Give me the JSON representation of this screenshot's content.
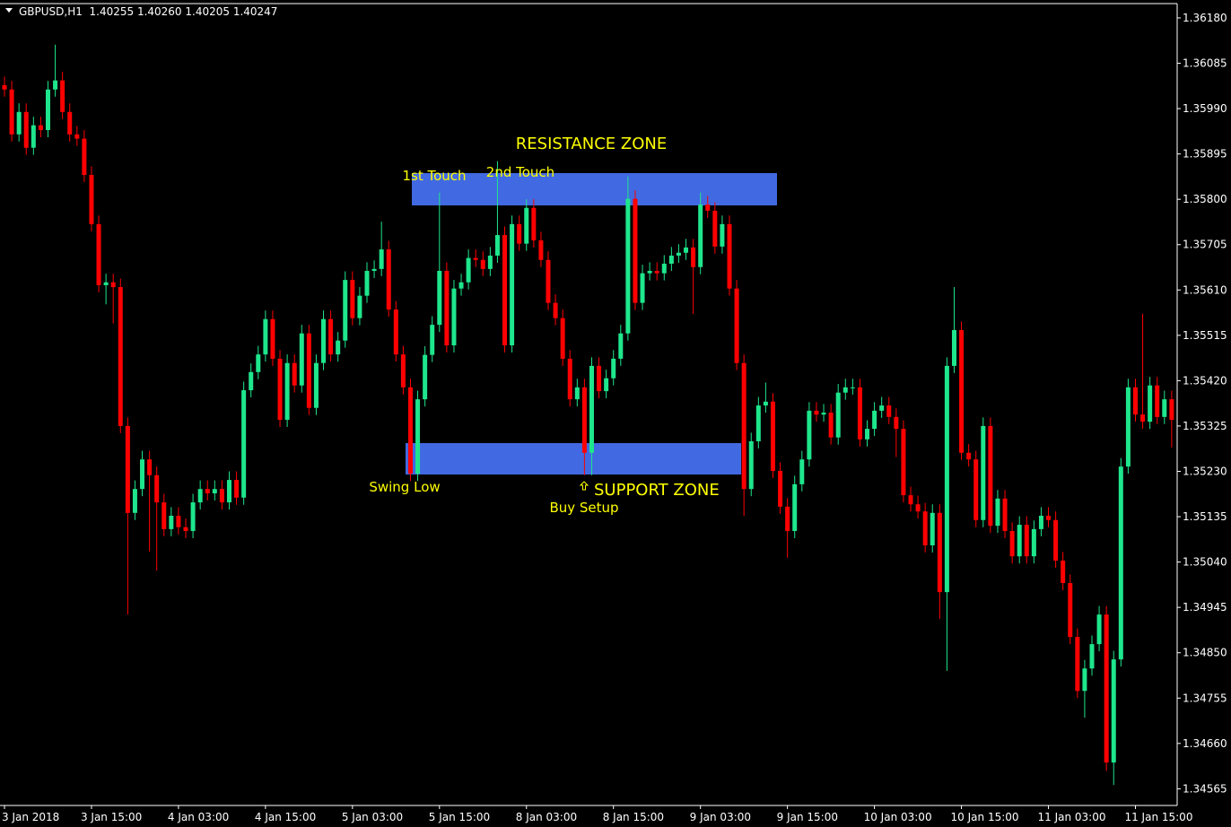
{
  "chart_data": {
    "type": "candlestick",
    "title": "GBPUSD,H1  1.40255 1.40260 1.40205 1.40247",
    "annotations": [
      "RESISTANCE ZONE",
      "1st Touch",
      "2nd Touch",
      "Swing Low",
      "SUPPORT ZONE",
      "Buy Setup"
    ],
    "up_color": "#1ee68c",
    "down_color": "#ff0000",
    "grid": false,
    "ylim": [
      1.3453,
      1.3621
    ],
    "yticks": [
      {
        "value": 1.3618,
        "label": "1.36180"
      },
      1.36085,
      {
        "value": 1.3599,
        "label": "1.35990"
      },
      1.35895,
      {
        "value": 1.358,
        "label": "1.35800"
      },
      1.35705,
      {
        "value": 1.3561,
        "label": "1.35610"
      },
      1.35515,
      {
        "value": 1.3542,
        "label": "1.35420"
      },
      1.35325,
      {
        "value": 1.3523,
        "label": "1.35230"
      },
      1.35135,
      {
        "value": 1.3504,
        "label": "1.35040"
      },
      1.34945,
      {
        "value": 1.3485,
        "label": "1.34850"
      },
      1.34755,
      {
        "value": 1.3466,
        "label": "1.34660"
      },
      1.34565
    ],
    "categories": [
      "3 Jan 2018",
      null,
      null,
      null,
      null,
      null,
      null,
      null,
      null,
      null,
      null,
      null,
      "3 Jan 15:00",
      null,
      null,
      null,
      null,
      null,
      null,
      null,
      null,
      null,
      null,
      null,
      "4 Jan 03:00",
      null,
      null,
      null,
      null,
      null,
      null,
      null,
      null,
      null,
      null,
      null,
      "4 Jan 15:00",
      null,
      null,
      null,
      null,
      null,
      null,
      null,
      null,
      null,
      null,
      null,
      "5 Jan 03:00",
      null,
      null,
      null,
      null,
      null,
      null,
      null,
      null,
      null,
      null,
      null,
      "5 Jan 15:00",
      null,
      null,
      null,
      null,
      null,
      null,
      null,
      null,
      null,
      null,
      null,
      "8 Jan 03:00",
      null,
      null,
      null,
      null,
      null,
      null,
      null,
      null,
      null,
      null,
      null,
      "8 Jan 15:00",
      null,
      null,
      null,
      null,
      null,
      null,
      null,
      null,
      null,
      null,
      null,
      "9 Jan 03:00",
      null,
      null,
      null,
      null,
      null,
      null,
      null,
      null,
      null,
      null,
      null,
      "9 Jan 15:00",
      null,
      null,
      null,
      null,
      null,
      null,
      null,
      null,
      null,
      null,
      null,
      "10 Jan 03:00",
      null,
      null,
      null,
      null,
      null,
      null,
      null,
      null,
      null,
      null,
      null,
      "10 Jan 15:00",
      null,
      null,
      null,
      null,
      null,
      null,
      null,
      null,
      null,
      null,
      null,
      "11 Jan 03:00",
      null,
      null,
      null,
      null,
      null,
      null,
      null,
      null,
      null,
      null,
      null,
      "11 Jan 15:00",
      null,
      null,
      null,
      null,
      null
    ],
    "open": [
      1.36039,
      1.3603,
      1.35936,
      1.35983,
      1.35908,
      1.35955,
      1.35945,
      1.3603,
      1.36049,
      1.35983,
      1.35936,
      1.35927,
      1.35851,
      1.35748,
      1.3562,
      1.35626,
      1.35616,
      1.35325,
      1.35143,
      1.35193,
      1.35255,
      1.35222,
      1.35165,
      1.35109,
      1.35137,
      1.35113,
      1.35105,
      1.35165,
      1.35193,
      1.35184,
      1.35193,
      1.35165,
      1.35212,
      1.35175,
      1.354,
      1.35438,
      1.35475,
      1.35549,
      1.35466,
      1.35338,
      1.35457,
      1.3541,
      1.35519,
      1.35363,
      1.35457,
      1.35549,
      1.35475,
      1.35504,
      1.35631,
      1.35551,
      1.35598,
      1.3565,
      1.35654,
      1.35695,
      1.35569,
      1.35475,
      1.35406,
      1.35225,
      1.35381,
      1.35474,
      1.35537,
      1.3565,
      1.35494,
      1.35613,
      1.35626,
      1.35677,
      1.35673,
      1.35654,
      1.35682,
      1.35725,
      1.35494,
      1.35748,
      1.35707,
      1.35782,
      1.35714,
      1.35673,
      1.35583,
      1.35551,
      1.35466,
      1.35381,
      1.35406,
      1.35269,
      1.35451,
      1.35398,
      1.35425,
      1.35466,
      1.35519,
      1.35801,
      1.35583,
      1.35645,
      1.3565,
      1.35645,
      1.35665,
      1.35682,
      1.35688,
      1.35699,
      1.35658,
      1.35789,
      1.35776,
      1.35701,
      1.35748,
      1.35613,
      1.35457,
      1.35193,
      1.35293,
      1.35368,
      1.35376,
      1.35231,
      1.35156,
      1.35105,
      1.35203,
      1.35255,
      1.35357,
      1.35349,
      1.35353,
      1.35301,
      1.35395,
      1.35406,
      1.35406,
      1.35297,
      1.35319,
      1.35357,
      1.35368,
      1.35344,
      1.35319,
      1.3518,
      1.35161,
      1.35146,
      1.35075,
      1.35143,
      1.34977,
      1.35451,
      1.35526,
      1.35269,
      1.35255,
      1.35128,
      1.35325,
      1.35116,
      1.35173,
      1.35105,
      1.35052,
      1.35118,
      1.35052,
      1.35109,
      1.35137,
      1.35128,
      1.35043,
      1.34996,
      1.34883,
      1.3477,
      1.34817,
      1.34868,
      1.3493,
      1.3462,
      1.34836,
      1.3524,
      1.35406,
      1.35349,
      1.35334,
      1.3541,
      1.35344,
      1.35381
    ],
    "high": [
      1.36057,
      1.36048,
      1.36001,
      1.36001,
      1.35973,
      1.35973,
      1.36048,
      1.36124,
      1.36067,
      1.36001,
      1.35954,
      1.35945,
      1.35869,
      1.35766,
      1.35644,
      1.35644,
      1.35634,
      1.35343,
      1.35211,
      1.35273,
      1.35273,
      1.3524,
      1.35183,
      1.35155,
      1.35155,
      1.35131,
      1.35183,
      1.35211,
      1.35211,
      1.35211,
      1.35211,
      1.3523,
      1.3523,
      1.35418,
      1.35456,
      1.35493,
      1.35567,
      1.35567,
      1.35484,
      1.35475,
      1.35475,
      1.35537,
      1.35537,
      1.35475,
      1.35567,
      1.35567,
      1.35522,
      1.35649,
      1.35649,
      1.35616,
      1.35668,
      1.35672,
      1.35753,
      1.35713,
      1.35587,
      1.35493,
      1.35424,
      1.35399,
      1.35492,
      1.35555,
      1.35814,
      1.35668,
      1.35631,
      1.35644,
      1.35695,
      1.35695,
      1.35691,
      1.357,
      1.3588,
      1.35743,
      1.35766,
      1.35766,
      1.358,
      1.358,
      1.35732,
      1.35691,
      1.35601,
      1.35569,
      1.35484,
      1.35424,
      1.35424,
      1.35469,
      1.35469,
      1.35443,
      1.35484,
      1.35537,
      1.35848,
      1.35819,
      1.35663,
      1.35668,
      1.35668,
      1.35683,
      1.357,
      1.35706,
      1.35717,
      1.35717,
      1.35814,
      1.35807,
      1.35794,
      1.35766,
      1.35766,
      1.35631,
      1.35475,
      1.35311,
      1.35386,
      1.35416,
      1.35394,
      1.35249,
      1.35174,
      1.35221,
      1.35273,
      1.35375,
      1.35375,
      1.35371,
      1.35371,
      1.35413,
      1.35424,
      1.35424,
      1.35424,
      1.35337,
      1.35375,
      1.35386,
      1.35386,
      1.35362,
      1.35337,
      1.35198,
      1.35179,
      1.35164,
      1.35161,
      1.35161,
      1.35469,
      1.35616,
      1.35544,
      1.35287,
      1.35273,
      1.35343,
      1.35343,
      1.35191,
      1.35191,
      1.35123,
      1.35136,
      1.35136,
      1.35127,
      1.35155,
      1.35155,
      1.35146,
      1.35061,
      1.35014,
      1.34901,
      1.34835,
      1.34886,
      1.34948,
      1.34948,
      1.34854,
      1.35258,
      1.35424,
      1.35424,
      1.3556,
      1.35428,
      1.35428,
      1.35399,
      1.35399
    ],
    "low": [
      1.36015,
      1.35921,
      1.35921,
      1.35893,
      1.35893,
      1.3593,
      1.3593,
      1.36015,
      1.35968,
      1.35921,
      1.35912,
      1.35836,
      1.35733,
      1.35605,
      1.3558,
      1.3554,
      1.3531,
      1.3493,
      1.35128,
      1.35178,
      1.35062,
      1.35022,
      1.35094,
      1.35094,
      1.35098,
      1.3509,
      1.3509,
      1.3515,
      1.35169,
      1.35169,
      1.3515,
      1.3515,
      1.3516,
      1.3516,
      1.35385,
      1.35423,
      1.3546,
      1.35451,
      1.35323,
      1.35323,
      1.35395,
      1.35395,
      1.35348,
      1.35348,
      1.35442,
      1.3546,
      1.3546,
      1.35489,
      1.35536,
      1.35536,
      1.35583,
      1.35635,
      1.35639,
      1.35554,
      1.3546,
      1.35391,
      1.3521,
      1.3521,
      1.35366,
      1.35459,
      1.35522,
      1.35479,
      1.35479,
      1.35598,
      1.35611,
      1.35658,
      1.35639,
      1.35639,
      1.35667,
      1.35479,
      1.35479,
      1.35692,
      1.35692,
      1.35699,
      1.35658,
      1.35568,
      1.35536,
      1.35451,
      1.35366,
      1.35366,
      1.35222,
      1.35222,
      1.35383,
      1.35383,
      1.3541,
      1.35451,
      1.35504,
      1.35568,
      1.35568,
      1.3563,
      1.3563,
      1.3563,
      1.3565,
      1.35667,
      1.35673,
      1.3556,
      1.35643,
      1.35761,
      1.35686,
      1.35686,
      1.35598,
      1.35442,
      1.35137,
      1.35178,
      1.35278,
      1.35353,
      1.35216,
      1.35141,
      1.35049,
      1.3509,
      1.35188,
      1.3524,
      1.35334,
      1.35334,
      1.35286,
      1.35286,
      1.3538,
      1.35391,
      1.35282,
      1.35282,
      1.35304,
      1.35342,
      1.35329,
      1.3526,
      1.35165,
      1.35146,
      1.35131,
      1.3506,
      1.3506,
      1.34921,
      1.34812,
      1.35436,
      1.35254,
      1.3524,
      1.35113,
      1.35113,
      1.35101,
      1.35101,
      1.3509,
      1.35037,
      1.35037,
      1.35037,
      1.35037,
      1.35094,
      1.35113,
      1.35028,
      1.34981,
      1.34868,
      1.34755,
      1.34714,
      1.34802,
      1.34853,
      1.34602,
      1.34573,
      1.34821,
      1.35225,
      1.35334,
      1.35319,
      1.35319,
      1.35329,
      1.35329,
      1.3528
    ],
    "close": [
      1.3603,
      1.35936,
      1.35983,
      1.35908,
      1.35955,
      1.35945,
      1.3603,
      1.36049,
      1.35983,
      1.35936,
      1.35927,
      1.35851,
      1.35748,
      1.3562,
      1.35626,
      1.35616,
      1.35325,
      1.35143,
      1.35193,
      1.35255,
      1.35222,
      1.35165,
      1.35109,
      1.35137,
      1.35113,
      1.35105,
      1.35165,
      1.35193,
      1.35184,
      1.35193,
      1.35165,
      1.35212,
      1.35175,
      1.354,
      1.35438,
      1.35475,
      1.35549,
      1.35466,
      1.35338,
      1.35457,
      1.3541,
      1.35519,
      1.35363,
      1.35457,
      1.35549,
      1.35475,
      1.35504,
      1.35631,
      1.35551,
      1.35598,
      1.3565,
      1.35654,
      1.35695,
      1.35569,
      1.35475,
      1.35406,
      1.35225,
      1.35381,
      1.35474,
      1.35537,
      1.3565,
      1.35494,
      1.35613,
      1.35626,
      1.35677,
      1.35673,
      1.35654,
      1.35682,
      1.35725,
      1.35494,
      1.35748,
      1.35707,
      1.35782,
      1.35714,
      1.35673,
      1.35583,
      1.35551,
      1.35466,
      1.35381,
      1.35406,
      1.35269,
      1.35451,
      1.35398,
      1.35425,
      1.35466,
      1.35519,
      1.35801,
      1.35583,
      1.35645,
      1.3565,
      1.35645,
      1.35665,
      1.35682,
      1.35688,
      1.35699,
      1.35658,
      1.35789,
      1.35776,
      1.35701,
      1.35748,
      1.35613,
      1.35457,
      1.35193,
      1.35293,
      1.35368,
      1.35376,
      1.35231,
      1.35156,
      1.35105,
      1.35203,
      1.35255,
      1.35357,
      1.35349,
      1.35353,
      1.35301,
      1.35395,
      1.35406,
      1.35406,
      1.35297,
      1.35319,
      1.35357,
      1.35368,
      1.35344,
      1.35319,
      1.3518,
      1.35161,
      1.35146,
      1.35075,
      1.35143,
      1.34977,
      1.35451,
      1.35526,
      1.35269,
      1.35255,
      1.35128,
      1.35325,
      1.35116,
      1.35173,
      1.35105,
      1.35052,
      1.35118,
      1.35052,
      1.35109,
      1.35137,
      1.35128,
      1.35043,
      1.34996,
      1.34883,
      1.3477,
      1.34817,
      1.34868,
      1.3493,
      1.3462,
      1.34836,
      1.3524,
      1.35406,
      1.35349,
      1.35334,
      1.3541,
      1.35344,
      1.35381,
      1.35338
    ]
  }
}
